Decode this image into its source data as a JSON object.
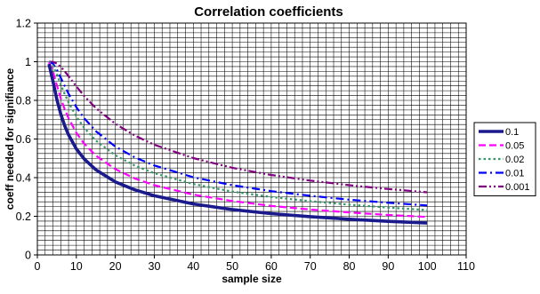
{
  "chart_data": {
    "type": "line",
    "title": "Correlation coefficients",
    "xlabel": "sample size",
    "ylabel": "coeff needed for signifiance",
    "xlim": [
      0,
      110
    ],
    "ylim": [
      0,
      1.2
    ],
    "x_ticks": [
      "0",
      "10",
      "20",
      "30",
      "40",
      "50",
      "60",
      "70",
      "80",
      "90",
      "100",
      "110"
    ],
    "y_ticks": [
      "0",
      "0.2",
      "0.4",
      "0.6",
      "0.8",
      "1",
      "1.2"
    ],
    "grid": true,
    "legend_position": "right",
    "series": [
      {
        "name": "0.1",
        "color": "#1a1a8c",
        "style": "solid-thick",
        "x": [
          3,
          4,
          5,
          6,
          7,
          8,
          10,
          12,
          15,
          20,
          25,
          30,
          40,
          50,
          60,
          70,
          80,
          90,
          100
        ],
        "y": [
          0.988,
          0.9,
          0.805,
          0.729,
          0.669,
          0.621,
          0.549,
          0.497,
          0.441,
          0.378,
          0.337,
          0.306,
          0.264,
          0.235,
          0.214,
          0.198,
          0.185,
          0.174,
          0.165
        ]
      },
      {
        "name": "0.05",
        "color": "#ff00ff",
        "style": "dashed",
        "x": [
          3,
          4,
          5,
          6,
          7,
          8,
          10,
          12,
          15,
          20,
          25,
          30,
          40,
          50,
          60,
          70,
          80,
          90,
          100
        ],
        "y": [
          0.997,
          0.95,
          0.878,
          0.811,
          0.754,
          0.707,
          0.632,
          0.576,
          0.514,
          0.444,
          0.396,
          0.361,
          0.312,
          0.279,
          0.254,
          0.235,
          0.22,
          0.207,
          0.197
        ]
      },
      {
        "name": "0.02",
        "color": "#339966",
        "style": "dotted",
        "x": [
          3,
          4,
          5,
          6,
          7,
          8,
          10,
          12,
          15,
          20,
          25,
          30,
          40,
          50,
          60,
          70,
          80,
          90,
          100
        ],
        "y": [
          1.0,
          0.98,
          0.934,
          0.882,
          0.833,
          0.789,
          0.716,
          0.658,
          0.592,
          0.516,
          0.462,
          0.423,
          0.367,
          0.328,
          0.3,
          0.278,
          0.26,
          0.245,
          0.232
        ]
      },
      {
        "name": "0.01",
        "color": "#0000ff",
        "style": "dash-dot",
        "x": [
          3,
          4,
          5,
          6,
          7,
          8,
          10,
          12,
          15,
          20,
          25,
          30,
          40,
          50,
          60,
          70,
          80,
          90,
          100
        ],
        "y": [
          1.0,
          0.99,
          0.959,
          0.917,
          0.875,
          0.834,
          0.765,
          0.708,
          0.641,
          0.561,
          0.505,
          0.463,
          0.402,
          0.361,
          0.33,
          0.306,
          0.286,
          0.27,
          0.256
        ]
      },
      {
        "name": "0.001",
        "color": "#800080",
        "style": "dash-dot-dot",
        "x": [
          3,
          4,
          5,
          6,
          7,
          8,
          10,
          12,
          15,
          20,
          25,
          30,
          40,
          50,
          60,
          70,
          80,
          90,
          100
        ],
        "y": [
          1.0,
          0.999,
          0.991,
          0.974,
          0.951,
          0.925,
          0.872,
          0.823,
          0.76,
          0.679,
          0.618,
          0.57,
          0.501,
          0.451,
          0.414,
          0.385,
          0.361,
          0.341,
          0.324
        ]
      }
    ]
  }
}
